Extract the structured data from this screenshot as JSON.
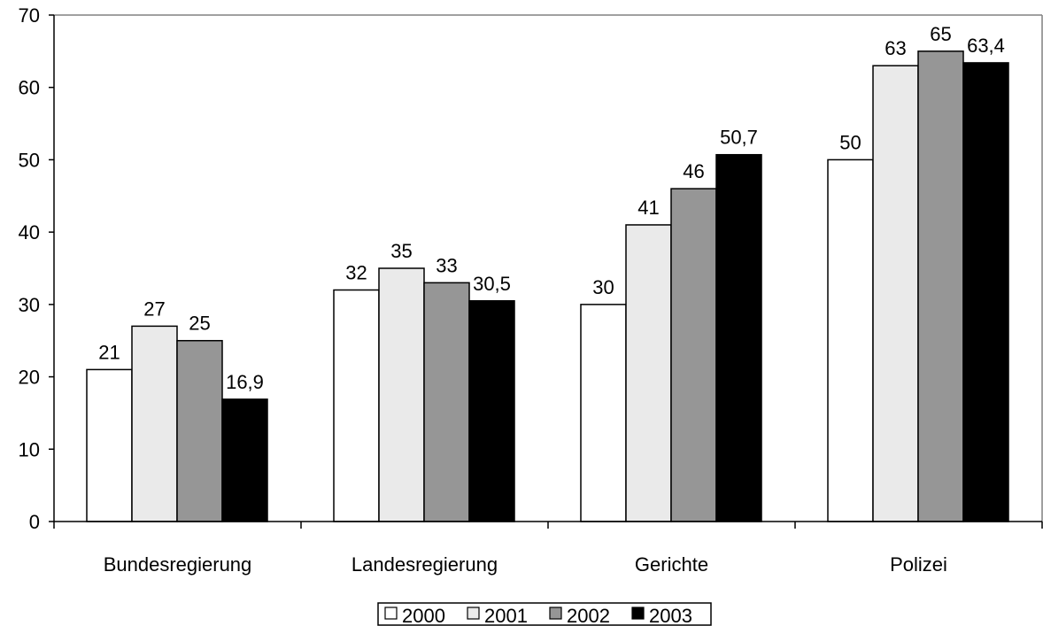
{
  "chart_data": {
    "type": "bar",
    "categories": [
      "Bundesregierung",
      "Landesregierung",
      "Gerichte",
      "Polizei"
    ],
    "series": [
      {
        "name": "2000",
        "values": [
          21,
          32,
          30,
          50
        ],
        "labels": [
          "21",
          "32",
          "30",
          "50"
        ],
        "color": "#ffffff"
      },
      {
        "name": "2001",
        "values": [
          27,
          35,
          41,
          63
        ],
        "labels": [
          "27",
          "35",
          "41",
          "63"
        ],
        "color": "#eaeaea"
      },
      {
        "name": "2002",
        "values": [
          25,
          33,
          46,
          65
        ],
        "labels": [
          "25",
          "33",
          "46",
          "65"
        ],
        "color": "#969696"
      },
      {
        "name": "2003",
        "values": [
          16.9,
          30.5,
          50.7,
          63.4
        ],
        "labels": [
          "16,9",
          "30,5",
          "50,7",
          "63,4"
        ],
        "color": "#000000"
      }
    ],
    "ylim": [
      0,
      70
    ],
    "yticks": [
      0,
      10,
      20,
      30,
      40,
      50,
      60,
      70
    ],
    "legend_position": "bottom"
  }
}
